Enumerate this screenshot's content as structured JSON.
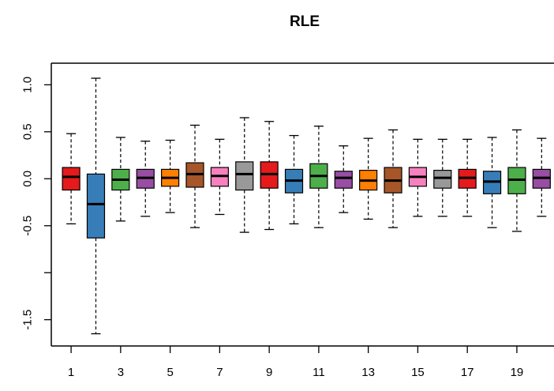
{
  "chart_data": {
    "type": "box",
    "title": "RLE",
    "xlabel": "",
    "ylabel": "",
    "ylim": [
      -1.78,
      1.23
    ],
    "xlim": [
      0.2,
      20.5
    ],
    "y_ticks": [
      1.0,
      0.5,
      0.0,
      -0.5,
      -1.0,
      -1.5
    ],
    "y_tick_labels": [
      "1.0",
      "0.5",
      "0.0",
      "-0.5",
      "",
      "-1.5"
    ],
    "x_ticks": [
      1,
      3,
      5,
      7,
      9,
      11,
      13,
      15,
      17,
      19
    ],
    "x_tick_labels": [
      "1",
      "3",
      "5",
      "7",
      "9",
      "11",
      "13",
      "15",
      "17",
      "19"
    ],
    "grid": false,
    "boxes": [
      {
        "x": 1,
        "min": -0.48,
        "q1": -0.12,
        "median": 0.02,
        "q3": 0.12,
        "max": 0.48,
        "color": "#e41a1c"
      },
      {
        "x": 2,
        "min": -1.65,
        "q1": -0.63,
        "median": -0.27,
        "q3": 0.05,
        "max": 1.07,
        "color": "#377eb8"
      },
      {
        "x": 3,
        "min": -0.45,
        "q1": -0.12,
        "median": -0.01,
        "q3": 0.1,
        "max": 0.44,
        "color": "#4daf4a"
      },
      {
        "x": 4,
        "min": -0.4,
        "q1": -0.1,
        "median": 0.01,
        "q3": 0.1,
        "max": 0.4,
        "color": "#984ea3"
      },
      {
        "x": 5,
        "min": -0.36,
        "q1": -0.08,
        "median": 0.01,
        "q3": 0.1,
        "max": 0.41,
        "color": "#ff7f00"
      },
      {
        "x": 6,
        "min": -0.52,
        "q1": -0.09,
        "median": 0.05,
        "q3": 0.17,
        "max": 0.57,
        "color": "#a65628"
      },
      {
        "x": 7,
        "min": -0.38,
        "q1": -0.08,
        "median": 0.03,
        "q3": 0.12,
        "max": 0.42,
        "color": "#f781bf"
      },
      {
        "x": 8,
        "min": -0.57,
        "q1": -0.12,
        "median": 0.05,
        "q3": 0.18,
        "max": 0.65,
        "color": "#999999"
      },
      {
        "x": 9,
        "min": -0.54,
        "q1": -0.1,
        "median": 0.05,
        "q3": 0.18,
        "max": 0.61,
        "color": "#e41a1c"
      },
      {
        "x": 10,
        "min": -0.48,
        "q1": -0.15,
        "median": -0.02,
        "q3": 0.1,
        "max": 0.46,
        "color": "#377eb8"
      },
      {
        "x": 11,
        "min": -0.52,
        "q1": -0.1,
        "median": 0.03,
        "q3": 0.16,
        "max": 0.56,
        "color": "#4daf4a"
      },
      {
        "x": 12,
        "min": -0.36,
        "q1": -0.1,
        "median": 0.01,
        "q3": 0.08,
        "max": 0.35,
        "color": "#984ea3"
      },
      {
        "x": 13,
        "min": -0.43,
        "q1": -0.12,
        "median": -0.02,
        "q3": 0.09,
        "max": 0.43,
        "color": "#ff7f00"
      },
      {
        "x": 14,
        "min": -0.52,
        "q1": -0.15,
        "median": -0.02,
        "q3": 0.12,
        "max": 0.52,
        "color": "#a65628"
      },
      {
        "x": 15,
        "min": -0.4,
        "q1": -0.08,
        "median": 0.02,
        "q3": 0.12,
        "max": 0.42,
        "color": "#f781bf"
      },
      {
        "x": 16,
        "min": -0.4,
        "q1": -0.1,
        "median": 0.01,
        "q3": 0.09,
        "max": 0.42,
        "color": "#999999"
      },
      {
        "x": 17,
        "min": -0.4,
        "q1": -0.1,
        "median": 0.01,
        "q3": 0.1,
        "max": 0.42,
        "color": "#e41a1c"
      },
      {
        "x": 18,
        "min": -0.52,
        "q1": -0.16,
        "median": -0.03,
        "q3": 0.08,
        "max": 0.44,
        "color": "#377eb8"
      },
      {
        "x": 19,
        "min": -0.56,
        "q1": -0.16,
        "median": -0.01,
        "q3": 0.12,
        "max": 0.52,
        "color": "#4daf4a"
      },
      {
        "x": 20,
        "min": -0.4,
        "q1": -0.1,
        "median": 0.01,
        "q3": 0.1,
        "max": 0.43,
        "color": "#984ea3"
      }
    ]
  }
}
